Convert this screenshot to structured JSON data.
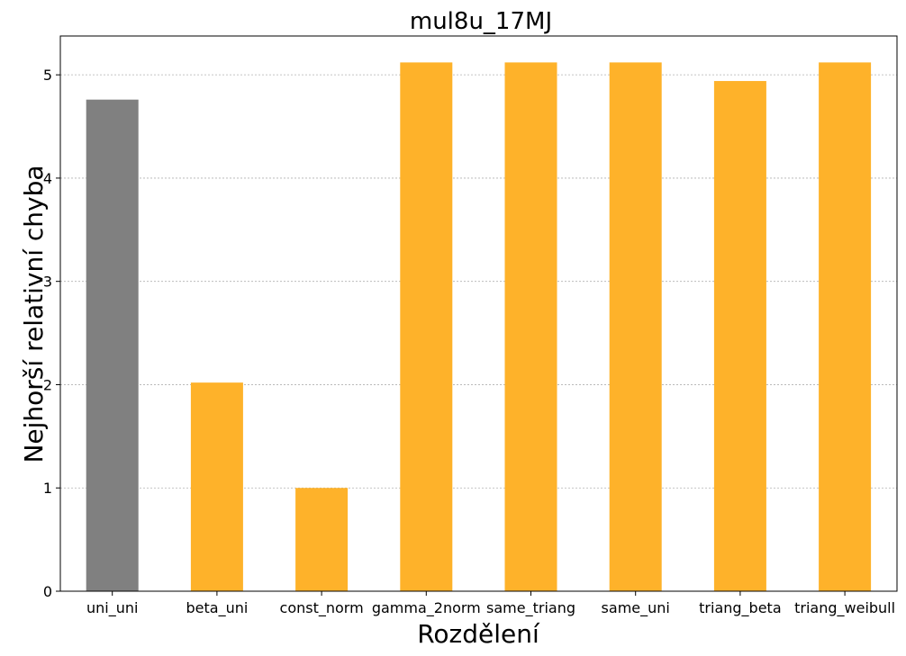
{
  "chart_data": {
    "type": "bar",
    "title": "mul8u_17MJ",
    "xlabel": "Rozdělení",
    "ylabel": "Nejhorší relativní chyba",
    "categories": [
      "uni_uni",
      "beta_uni",
      "const_norm",
      "gamma_2norm",
      "same_triang",
      "same_uni",
      "triang_beta",
      "triang_weibull"
    ],
    "values": [
      4.76,
      2.02,
      1.0,
      5.12,
      5.12,
      5.12,
      4.94,
      5.12
    ],
    "bar_colors": [
      "#808080",
      "#feb22a",
      "#feb22a",
      "#feb22a",
      "#feb22a",
      "#feb22a",
      "#feb22a",
      "#feb22a"
    ],
    "ylim": [
      0,
      5.376
    ],
    "yticks": [
      0,
      1,
      2,
      3,
      4,
      5
    ],
    "grid": "horizontal dotted",
    "legend": "none"
  }
}
